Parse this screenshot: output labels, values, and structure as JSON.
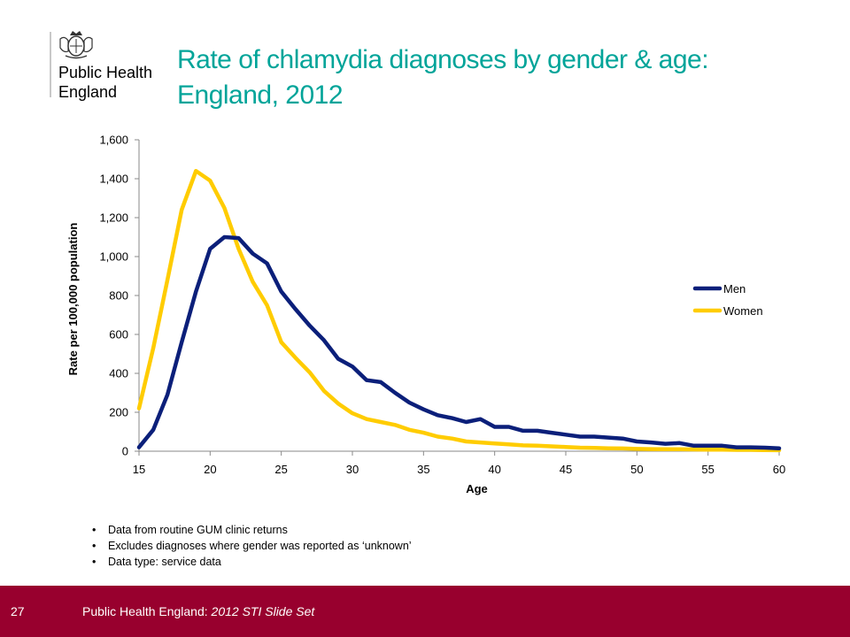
{
  "header": {
    "org_line1": "Public Health",
    "org_line2": "England",
    "title_line1": "Rate of chlamydia diagnoses by gender & age:",
    "title_line2": "England, 2012"
  },
  "notes": [
    "Data from routine GUM clinic returns",
    "Excludes diagnoses where gender was reported as ‘unknown’",
    "Data type: service data"
  ],
  "footer": {
    "page_number": "27",
    "org": "Public Health England: ",
    "slide_set": "2012 STI Slide Set"
  },
  "colors": {
    "title": "#00a499",
    "men": "#0b1f7a",
    "women": "#ffcc00",
    "footer_bg": "#98002e"
  },
  "chart_data": {
    "type": "line",
    "title": "",
    "xlabel": "Age",
    "ylabel": "Rate per 100,000 population",
    "xlim": [
      15,
      60
    ],
    "ylim": [
      0,
      1600
    ],
    "x_ticks": [
      15,
      20,
      25,
      30,
      35,
      40,
      45,
      50,
      55,
      60
    ],
    "y_ticks": [
      0,
      200,
      400,
      600,
      800,
      1000,
      1200,
      1400,
      1600
    ],
    "y_tick_labels": [
      "0",
      "200",
      "400",
      "600",
      "800",
      "1,000",
      "1,200",
      "1,400",
      "1,600"
    ],
    "grid": false,
    "legend_position": "right",
    "x": [
      15,
      16,
      17,
      18,
      19,
      20,
      21,
      22,
      23,
      24,
      25,
      26,
      27,
      28,
      29,
      30,
      31,
      32,
      33,
      34,
      35,
      36,
      37,
      38,
      39,
      40,
      41,
      42,
      43,
      44,
      45,
      46,
      47,
      48,
      49,
      50,
      51,
      52,
      53,
      54,
      55,
      56,
      57,
      58,
      59,
      60
    ],
    "series": [
      {
        "name": "Men",
        "color": "#0b1f7a",
        "values": [
          20,
          110,
          290,
          560,
          820,
          1040,
          1100,
          1095,
          1015,
          965,
          820,
          730,
          645,
          570,
          475,
          435,
          365,
          355,
          300,
          250,
          215,
          185,
          170,
          150,
          165,
          125,
          125,
          105,
          105,
          95,
          85,
          75,
          75,
          70,
          65,
          50,
          45,
          38,
          42,
          28,
          28,
          28,
          20,
          20,
          18,
          15
        ]
      },
      {
        "name": "Women",
        "color": "#ffcc00",
        "values": [
          220,
          530,
          880,
          1240,
          1440,
          1390,
          1250,
          1040,
          870,
          750,
          560,
          480,
          405,
          310,
          245,
          195,
          165,
          150,
          135,
          110,
          95,
          75,
          65,
          50,
          45,
          40,
          35,
          30,
          28,
          25,
          22,
          18,
          17,
          15,
          14,
          12,
          11,
          10,
          10,
          9,
          8,
          8,
          7,
          7,
          6,
          5
        ]
      }
    ]
  }
}
